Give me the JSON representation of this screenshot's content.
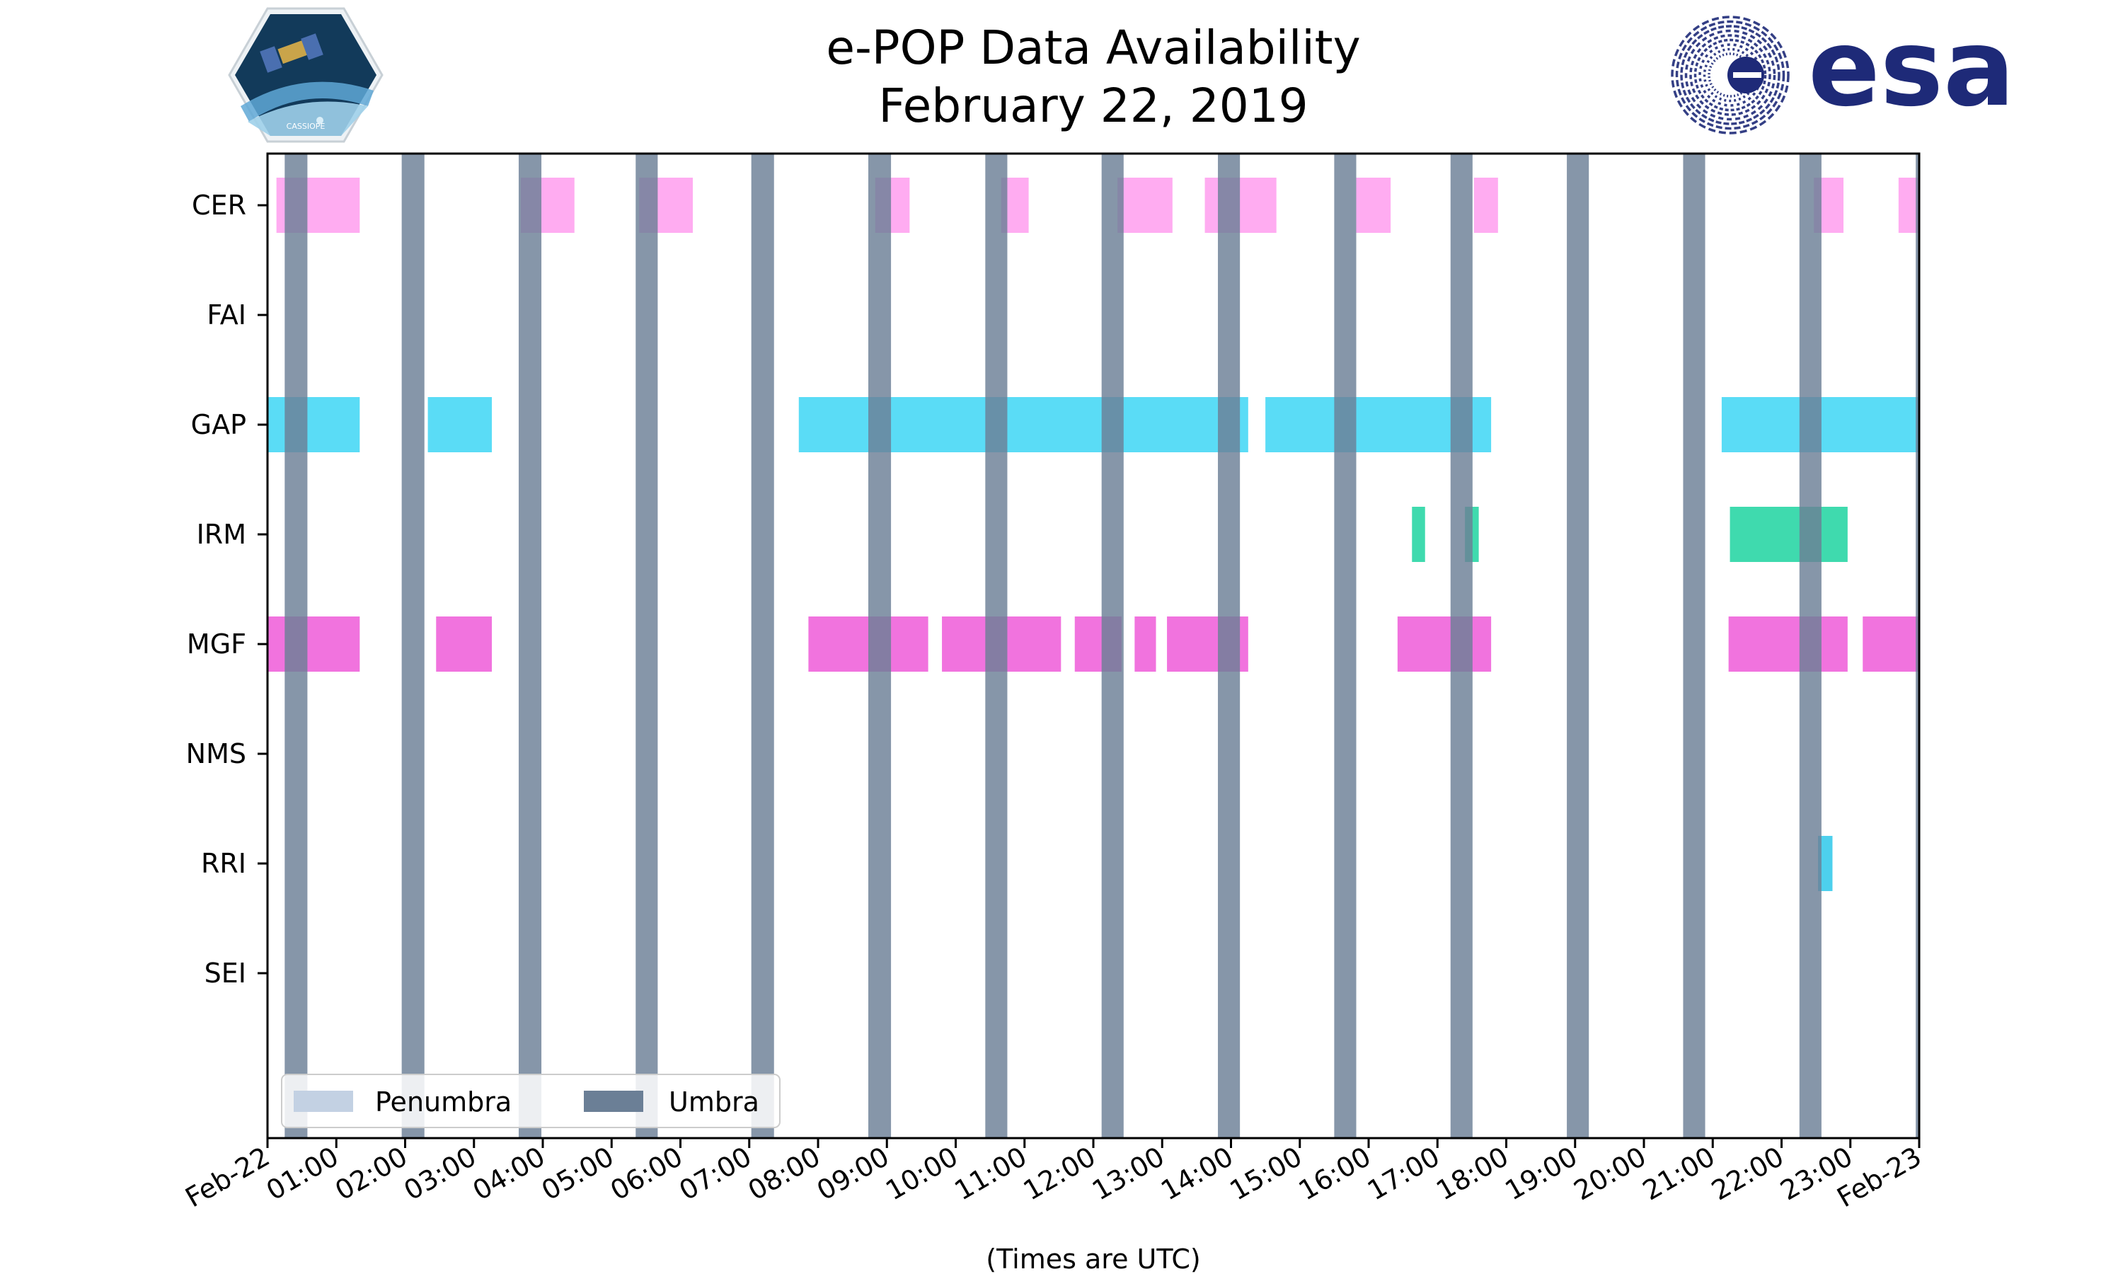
{
  "colors": {
    "umbra": "#6b7f96",
    "penumbra": "#c3d1e3",
    "CER": "#ff9eef",
    "GAP": "#3dd6f5",
    "IRM": "#1dd3a0",
    "MGF": "#ee5ad8",
    "RRI": "#2ec8ea",
    "esa_brand": "#1e2a78",
    "logo_bg": "#123a5a"
  },
  "logos": {
    "left": {
      "name": "cassiope-mission-logo",
      "text": "CASSIOPE"
    },
    "right": {
      "name": "esa-logo",
      "text": "esa"
    }
  },
  "chart_data": {
    "type": "timeline",
    "title": "e-POP Data Availability",
    "subtitle": "February 22, 2019",
    "xlabel": "(Times are UTC)",
    "ylabel": "",
    "xlim": [
      0,
      24
    ],
    "x_unit": "hours UTC from Feb-22 00:00",
    "x_ticks": [
      "Feb-22",
      "01:00",
      "02:00",
      "03:00",
      "04:00",
      "05:00",
      "06:00",
      "07:00",
      "08:00",
      "09:00",
      "10:00",
      "11:00",
      "12:00",
      "13:00",
      "14:00",
      "15:00",
      "16:00",
      "17:00",
      "18:00",
      "19:00",
      "20:00",
      "21:00",
      "22:00",
      "23:00",
      "Feb-23"
    ],
    "instruments": [
      "CER",
      "FAI",
      "GAP",
      "IRM",
      "MGF",
      "NMS",
      "RRI",
      "SEI"
    ],
    "legend": {
      "placement": "lower-left",
      "entries": [
        {
          "label": "Penumbra",
          "color_key": "penumbra"
        },
        {
          "label": "Umbra",
          "color_key": "umbra"
        }
      ]
    },
    "umbra": [
      [
        0.25,
        0.58
      ],
      [
        1.95,
        2.28
      ],
      [
        3.65,
        3.98
      ],
      [
        5.35,
        5.67
      ],
      [
        7.03,
        7.36
      ],
      [
        8.73,
        9.06
      ],
      [
        10.43,
        10.75
      ],
      [
        12.12,
        12.44
      ],
      [
        13.81,
        14.13
      ],
      [
        15.5,
        15.82
      ],
      [
        17.19,
        17.51
      ],
      [
        18.88,
        19.2
      ],
      [
        20.57,
        20.89
      ],
      [
        22.26,
        22.58
      ],
      [
        23.95,
        24.0
      ]
    ],
    "availability": {
      "CER": [
        [
          0.13,
          1.34
        ],
        [
          3.68,
          4.46
        ],
        [
          5.4,
          6.18
        ],
        [
          8.83,
          9.33
        ],
        [
          10.66,
          11.06
        ],
        [
          12.35,
          13.15
        ],
        [
          13.62,
          14.66
        ],
        [
          15.82,
          16.32
        ],
        [
          17.53,
          17.88
        ],
        [
          22.47,
          22.9
        ],
        [
          23.7,
          24.0
        ]
      ],
      "FAI": [],
      "GAP": [
        [
          0.0,
          1.34
        ],
        [
          2.33,
          3.26
        ],
        [
          7.72,
          14.25
        ],
        [
          14.5,
          17.78
        ],
        [
          21.13,
          24.0
        ]
      ],
      "IRM": [
        [
          16.63,
          16.82
        ],
        [
          17.4,
          17.6
        ],
        [
          21.25,
          22.96
        ]
      ],
      "MGF": [
        [
          0.0,
          1.34
        ],
        [
          2.45,
          3.26
        ],
        [
          7.86,
          9.6
        ],
        [
          9.8,
          11.53
        ],
        [
          11.73,
          12.41
        ],
        [
          12.6,
          12.91
        ],
        [
          13.07,
          14.25
        ],
        [
          16.42,
          17.78
        ],
        [
          21.23,
          22.96
        ],
        [
          23.18,
          24.0
        ]
      ],
      "NMS": [],
      "RRI": [
        [
          22.53,
          22.74
        ]
      ],
      "SEI": []
    }
  }
}
